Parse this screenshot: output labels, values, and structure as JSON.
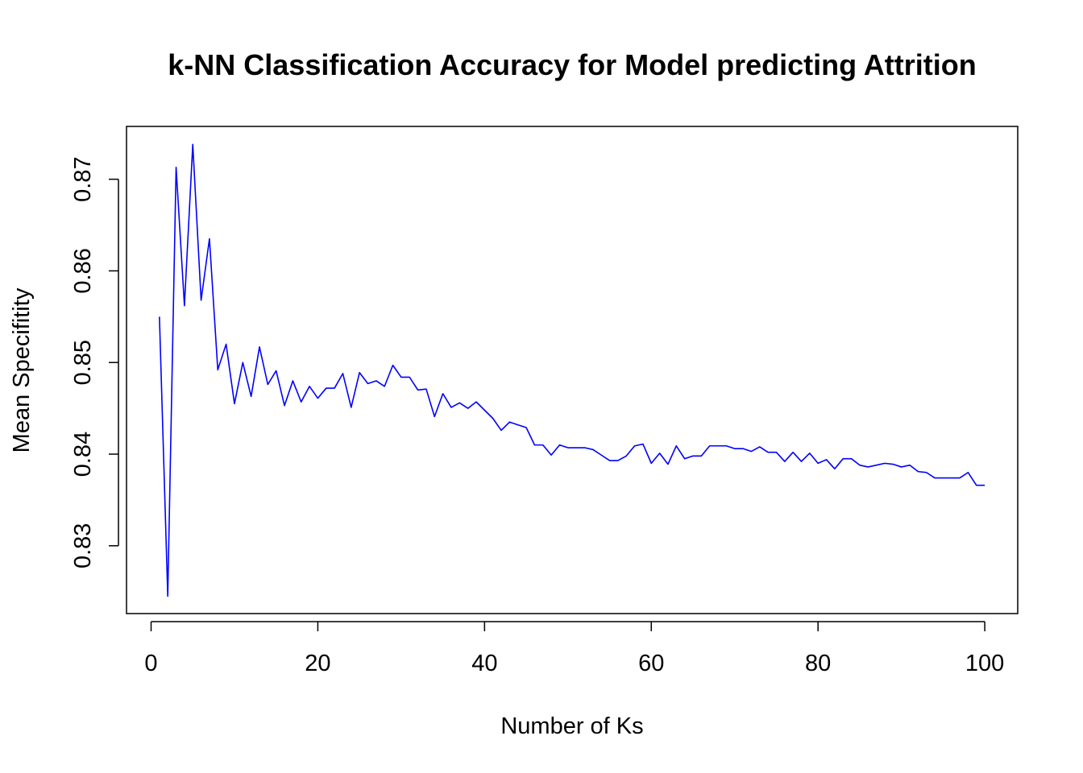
{
  "chart_data": {
    "type": "line",
    "title": "k-NN Classification Accuracy for Model predicting Attrition",
    "xlabel": "Number of Ks",
    "ylabel": "Mean Specifitity",
    "xlim": [
      0,
      100
    ],
    "ylim": [
      0.8245,
      0.8738
    ],
    "x_ticks": [
      0,
      20,
      40,
      60,
      80,
      100
    ],
    "x_tick_labels": [
      "0",
      "20",
      "40",
      "60",
      "80",
      "100"
    ],
    "y_ticks": [
      0.83,
      0.84,
      0.85,
      0.86,
      0.87
    ],
    "y_tick_labels": [
      "0.83",
      "0.84",
      "0.85",
      "0.86",
      "0.87"
    ],
    "grid": false,
    "legend": "none",
    "series": [
      {
        "color": "#0000ff",
        "x": [
          1,
          2,
          3,
          4,
          5,
          6,
          7,
          8,
          9,
          10,
          11,
          12,
          13,
          14,
          15,
          16,
          17,
          18,
          19,
          20,
          21,
          22,
          23,
          24,
          25,
          26,
          27,
          28,
          29,
          30,
          31,
          32,
          33,
          34,
          35,
          36,
          37,
          38,
          39,
          40,
          41,
          42,
          43,
          44,
          45,
          46,
          47,
          48,
          49,
          50,
          51,
          52,
          53,
          54,
          55,
          56,
          57,
          58,
          59,
          60,
          61,
          62,
          63,
          64,
          65,
          66,
          67,
          68,
          69,
          70,
          71,
          72,
          73,
          74,
          75,
          76,
          77,
          78,
          79,
          80,
          81,
          82,
          83,
          84,
          85,
          86,
          87,
          88,
          89,
          90,
          91,
          92,
          93,
          94,
          95,
          96,
          97,
          98,
          99,
          100
        ],
        "values": [
          0.855,
          0.8245,
          0.8713,
          0.8562,
          0.8738,
          0.8568,
          0.8635,
          0.8492,
          0.852,
          0.8455,
          0.85,
          0.8463,
          0.8517,
          0.8476,
          0.8491,
          0.8453,
          0.848,
          0.8457,
          0.8474,
          0.8461,
          0.8472,
          0.8472,
          0.8488,
          0.8451,
          0.8489,
          0.8477,
          0.848,
          0.8474,
          0.8497,
          0.8484,
          0.8484,
          0.847,
          0.8471,
          0.8441,
          0.8466,
          0.8451,
          0.8456,
          0.845,
          0.8457,
          0.8448,
          0.8439,
          0.8426,
          0.8435,
          0.8432,
          0.8429,
          0.841,
          0.841,
          0.8399,
          0.841,
          0.8407,
          0.8407,
          0.8407,
          0.8405,
          0.8399,
          0.8393,
          0.8393,
          0.8398,
          0.8409,
          0.8411,
          0.839,
          0.8401,
          0.8389,
          0.8409,
          0.8395,
          0.8398,
          0.8398,
          0.8409,
          0.8409,
          0.8409,
          0.8406,
          0.8406,
          0.8403,
          0.8408,
          0.8402,
          0.8402,
          0.8392,
          0.8402,
          0.8392,
          0.8401,
          0.839,
          0.8394,
          0.8384,
          0.8395,
          0.8395,
          0.8388,
          0.8386,
          0.8388,
          0.839,
          0.8389,
          0.8386,
          0.8388,
          0.8381,
          0.838,
          0.8374,
          0.8374,
          0.8374,
          0.8374,
          0.838,
          0.8366,
          0.8366
        ]
      }
    ]
  }
}
